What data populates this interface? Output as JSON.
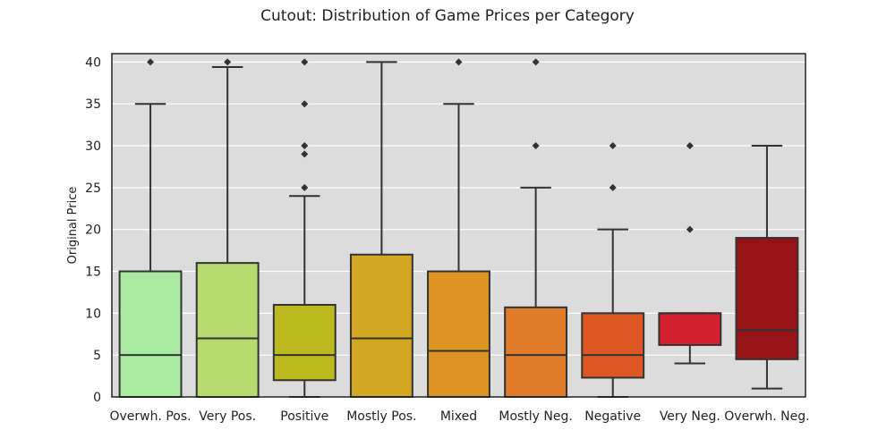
{
  "chart_data": {
    "type": "box",
    "title": "Cutout: Distribution of Game Prices per Category",
    "xlabel": "",
    "ylabel": "Original Price",
    "ylim": [
      0,
      41
    ],
    "yticks": [
      0,
      5,
      10,
      15,
      20,
      25,
      30,
      35,
      40
    ],
    "grid": true,
    "categories": [
      "Overwh. Pos.",
      "Very Pos.",
      "Positive",
      "Mostly Pos.",
      "Mixed",
      "Mostly Neg.",
      "Negative",
      "Very Neg.",
      "Overwh. Neg."
    ],
    "boxes": [
      {
        "category": "Overwh. Pos.",
        "whisker_low": 0,
        "q1": 0,
        "median": 5,
        "q3": 15,
        "whisker_high": 35,
        "outliers": [
          40
        ],
        "color": "#a8eba0"
      },
      {
        "category": "Very Pos.",
        "whisker_low": 0,
        "q1": 0,
        "median": 7,
        "q3": 16,
        "whisker_high": 39.4,
        "outliers": [
          40
        ],
        "color": "#b7da6e"
      },
      {
        "category": "Positive",
        "whisker_low": 0,
        "q1": 2,
        "median": 5,
        "q3": 11,
        "whisker_high": 24,
        "outliers": [
          25,
          29,
          30,
          35,
          40
        ],
        "color": "#bcb91f"
      },
      {
        "category": "Mostly Pos.",
        "whisker_low": 0,
        "q1": 0,
        "median": 7,
        "q3": 17,
        "whisker_high": 40,
        "outliers": [],
        "color": "#d2a822"
      },
      {
        "category": "Mixed",
        "whisker_low": 0,
        "q1": 0,
        "median": 5.5,
        "q3": 15,
        "whisker_high": 35,
        "outliers": [
          40
        ],
        "color": "#dd9422"
      },
      {
        "category": "Mostly Neg.",
        "whisker_low": 0,
        "q1": 0,
        "median": 5,
        "q3": 10.7,
        "whisker_high": 25,
        "outliers": [
          30,
          40
        ],
        "color": "#e07b2a"
      },
      {
        "category": "Negative",
        "whisker_low": 0,
        "q1": 2.3,
        "median": 5,
        "q3": 10,
        "whisker_high": 20,
        "outliers": [
          25,
          30
        ],
        "color": "#dd5722"
      },
      {
        "category": "Very Neg.",
        "whisker_low": 4,
        "q1": 6.2,
        "median": 10,
        "q3": 10,
        "whisker_high": 10,
        "outliers": [
          20,
          30
        ],
        "color": "#d52030"
      },
      {
        "category": "Overwh. Neg.",
        "whisker_low": 1,
        "q1": 4.5,
        "median": 8,
        "q3": 19,
        "whisker_high": 30,
        "outliers": [],
        "color": "#961418"
      }
    ]
  }
}
